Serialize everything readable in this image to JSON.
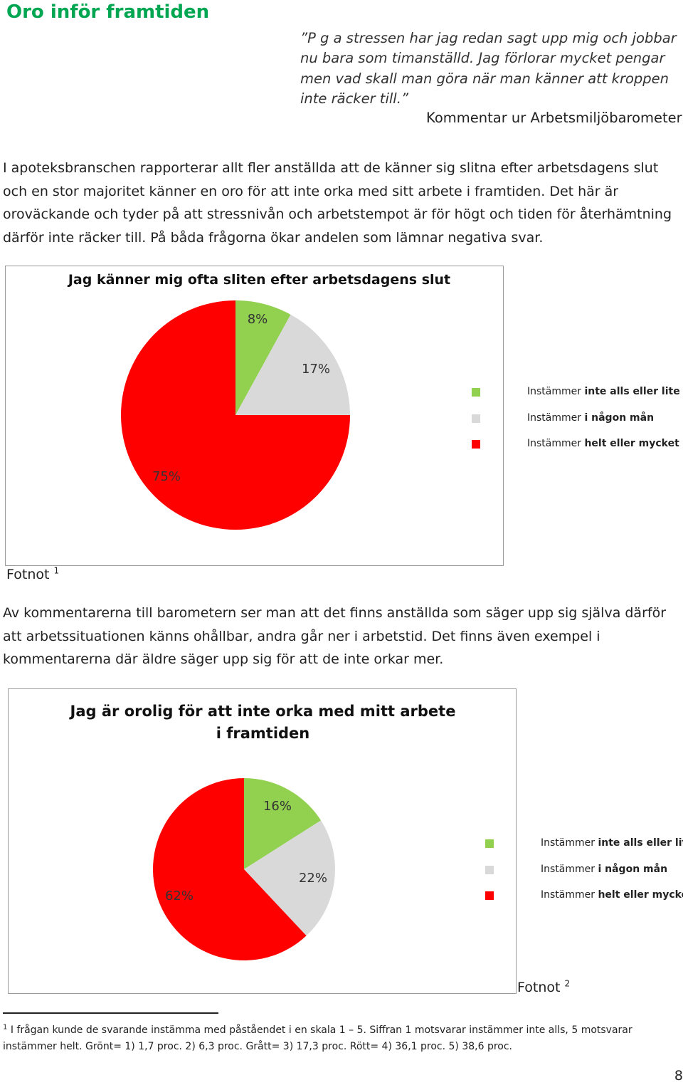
{
  "heading": "Oro inför framtiden",
  "quote": "”P g a stressen har jag redan sagt upp mig och jobbar nu bara som timanställd. Jag förlorar mycket pengar men vad skall man göra när man känner att kroppen inte räcker till.”",
  "quote_source": "Kommentar ur Arbetsmiljöbarometern",
  "paragraph1": "I apoteksbranschen rapporterar allt fler anställda att de känner sig slitna efter arbetsdagens slut och en stor majoritet känner en oro för att inte orka med sitt arbete i framtiden. Det här är oroväckande och tyder på att stressnivån och arbetstempot är för högt och tiden för återhämtning därför inte räcker till. På båda frågorna ökar andelen som lämnar negativa svar.",
  "paragraph2": "Av kommentarerna till barometern ser man att det finns anställda som säger upp sig själva därför att arbetssituationen känns ohållbar, andra går ner i arbetstid. Det finns även exempel i kommentarerna där äldre säger upp sig för att de inte orkar mer.",
  "legend": [
    {
      "prefix": "Instämmer ",
      "bold": "inte alls eller lite",
      "color": "#92d050"
    },
    {
      "prefix": "Instämmer ",
      "bold": "i någon mån",
      "color": "#d9d9d9"
    },
    {
      "prefix": "Instämmer ",
      "bold": "helt eller mycket",
      "color": "#ff0000"
    }
  ],
  "fotnot1": {
    "label": "Fotnot",
    "sup": "1"
  },
  "fotnot2": {
    "label": "Fotnot",
    "sup": "2"
  },
  "footnote": {
    "marker": "1",
    "text": "I frågan kunde de svarande instämma med påståendet i en skala 1 – 5. Siffran 1 motsvarar instämmer inte alls, 5 motsvarar instämmer helt. Grönt= 1) 1,7 proc. 2) 6,3 proc. Grått= 3) 17,3 proc. Rött= 4) 36,1 proc. 5) 38,6 proc."
  },
  "page_number": "8",
  "chart_data": [
    {
      "type": "pie",
      "title": "Jag känner mig ofta sliten efter arbetsdagens slut",
      "categories": [
        "Instämmer inte alls eller lite",
        "Instämmer i någon mån",
        "Instämmer helt eller mycket"
      ],
      "values": [
        8,
        17,
        75
      ],
      "labels": [
        "8%",
        "17%",
        "75%"
      ],
      "colors": [
        "#92d050",
        "#d9d9d9",
        "#ff0000"
      ],
      "legend": "right"
    },
    {
      "type": "pie",
      "title": "Jag är orolig för att inte orka med mitt arbete i framtiden",
      "categories": [
        "Instämmer inte alls eller lite",
        "Instämmer i någon mån",
        "Instämmer helt eller mycket"
      ],
      "values": [
        16,
        22,
        62
      ],
      "labels": [
        "16%",
        "22%",
        "62%"
      ],
      "colors": [
        "#92d050",
        "#d9d9d9",
        "#ff0000"
      ],
      "legend": "right"
    }
  ]
}
